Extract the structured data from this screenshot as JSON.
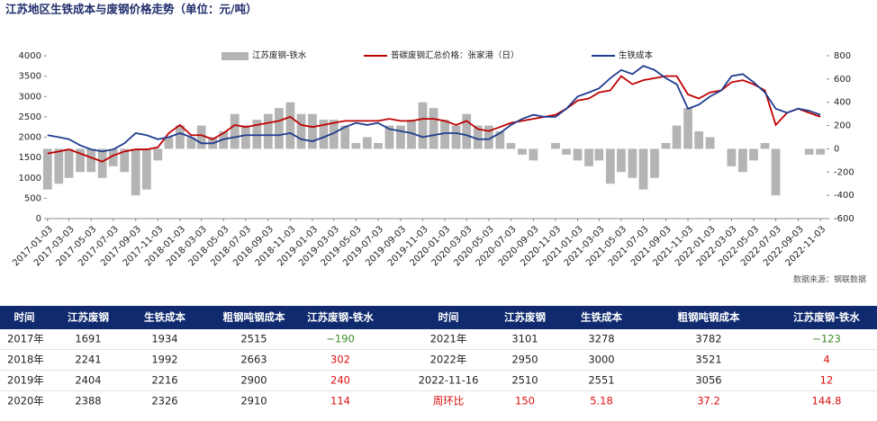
{
  "chart_data": {
    "type": "bar-line",
    "title": "江苏地区生铁成本与废钢价格走势（单位：元/吨）",
    "source": "数据来源：钢联数据",
    "x": [
      "2017-01-03",
      "2017-02-03",
      "2017-03-03",
      "2017-04-03",
      "2017-05-03",
      "2017-06-03",
      "2017-07-03",
      "2017-08-03",
      "2017-09-03",
      "2017-10-03",
      "2017-11-03",
      "2017-12-03",
      "2018-01-03",
      "2018-02-03",
      "2018-03-03",
      "2018-04-03",
      "2018-05-03",
      "2018-06-03",
      "2018-07-03",
      "2018-08-03",
      "2018-09-03",
      "2018-10-03",
      "2018-11-03",
      "2018-12-03",
      "2019-01-03",
      "2019-02-03",
      "2019-03-03",
      "2019-04-03",
      "2019-05-03",
      "2019-06-03",
      "2019-07-03",
      "2019-08-03",
      "2019-09-03",
      "2019-10-03",
      "2019-11-03",
      "2019-12-03",
      "2020-01-03",
      "2020-02-03",
      "2020-03-03",
      "2020-04-03",
      "2020-05-03",
      "2020-06-03",
      "2020-07-03",
      "2020-08-03",
      "2020-09-03",
      "2020-10-03",
      "2020-11-03",
      "2020-12-03",
      "2021-01-03",
      "2021-02-03",
      "2021-03-03",
      "2021-04-03",
      "2021-05-03",
      "2021-06-03",
      "2021-07-03",
      "2021-08-03",
      "2021-09-03",
      "2021-10-03",
      "2021-11-03",
      "2021-12-03",
      "2022-01-03",
      "2022-02-03",
      "2022-03-03",
      "2022-04-03",
      "2022-05-03",
      "2022-06-03",
      "2022-07-03",
      "2022-08-03",
      "2022-09-03",
      "2022-10-03",
      "2022-11-03"
    ],
    "xlim": [
      "2017-01-01",
      "2022-11-20"
    ],
    "xticks": [
      "2017-01-03",
      "2017-03-03",
      "2017-05-03",
      "2017-07-03",
      "2017-09-03",
      "2017-11-03",
      "2018-01-03",
      "2018-03-03",
      "2018-05-03",
      "2018-07-03",
      "2018-09-03",
      "2018-11-03",
      "2019-01-03",
      "2019-03-03",
      "2019-05-03",
      "2019-07-03",
      "2019-09-03",
      "2019-11-03",
      "2020-01-03",
      "2020-03-03",
      "2020-05-03",
      "2020-07-03",
      "2020-09-03",
      "2020-11-03",
      "2021-01-03",
      "2021-03-03",
      "2021-05-03",
      "2021-07-03",
      "2021-09-03",
      "2021-11-03",
      "2022-01-03",
      "2022-03-03",
      "2022-05-03",
      "2022-07-03",
      "2022-09-03",
      "2022-11-03"
    ],
    "ylim": [
      0,
      4000
    ],
    "yticks": [
      0,
      500,
      1000,
      1500,
      2000,
      2500,
      3000,
      3500,
      4000
    ],
    "y2lim": [
      -600,
      800
    ],
    "y2ticks": [
      -600,
      -400,
      -200,
      0,
      200,
      400,
      600,
      800
    ],
    "series": [
      {
        "name": "江苏废钢-铁水",
        "type": "bar",
        "axis": "y2",
        "color": "#b4b4b4",
        "values": [
          -350,
          -300,
          -250,
          -200,
          -200,
          -250,
          -150,
          -200,
          -400,
          -350,
          -100,
          100,
          200,
          100,
          200,
          100,
          150,
          300,
          200,
          250,
          300,
          350,
          400,
          300,
          300,
          250,
          250,
          200,
          50,
          100,
          50,
          200,
          200,
          250,
          400,
          350,
          250,
          200,
          300,
          200,
          200,
          150,
          50,
          -50,
          -100,
          0,
          50,
          -50,
          -100,
          -150,
          -100,
          -300,
          -200,
          -250,
          -350,
          -250,
          50,
          200,
          350,
          150,
          100,
          0,
          -150,
          -200,
          -100,
          50,
          -400,
          0,
          0,
          -50,
          -50
        ]
      },
      {
        "name": "普碳废钢汇总价格：张家港（日）",
        "type": "line",
        "color": "#c00000",
        "values": [
          1600,
          1650,
          1700,
          1600,
          1500,
          1400,
          1550,
          1650,
          1700,
          1700,
          1750,
          2100,
          2300,
          2050,
          2050,
          1950,
          2100,
          2300,
          2250,
          2300,
          2350,
          2400,
          2500,
          2300,
          2250,
          2300,
          2350,
          2400,
          2400,
          2400,
          2400,
          2450,
          2400,
          2400,
          2450,
          2450,
          2400,
          2300,
          2400,
          2200,
          2150,
          2250,
          2350,
          2400,
          2450,
          2500,
          2550,
          2700,
          2900,
          2950,
          3100,
          3150,
          3500,
          3300,
          3400,
          3450,
          3500,
          3500,
          3050,
          2950,
          3100,
          3150,
          3350,
          3400,
          3300,
          3150,
          2300,
          2600,
          2700,
          2600,
          2500
        ]
      },
      {
        "name": "生铁成本",
        "type": "line",
        "color": "#1f3c8f",
        "values": [
          2050,
          2000,
          1950,
          1800,
          1700,
          1650,
          1700,
          1850,
          2100,
          2050,
          1950,
          2000,
          2100,
          2000,
          1850,
          1850,
          1950,
          2000,
          2050,
          2050,
          2050,
          2050,
          2100,
          1950,
          1900,
          2000,
          2100,
          2250,
          2350,
          2300,
          2350,
          2200,
          2150,
          2100,
          2000,
          2050,
          2100,
          2100,
          2050,
          1950,
          1950,
          2100,
          2300,
          2450,
          2550,
          2500,
          2500,
          2700,
          3000,
          3100,
          3200,
          3450,
          3650,
          3550,
          3750,
          3650,
          3450,
          3300,
          2700,
          2800,
          3000,
          3150,
          3500,
          3550,
          3350,
          3100,
          2700,
          2600,
          2700,
          2650,
          2550
        ]
      }
    ]
  },
  "table": {
    "header": [
      "时间",
      "江苏废钢",
      "生铁成本",
      "粗钢吨钢成本",
      "江苏废钢-铁水",
      "时间",
      "江苏废钢",
      "生铁成本",
      "粗钢吨钢成本",
      "江苏废钢-铁水"
    ],
    "rows": [
      [
        "2017年",
        "1691",
        "1934",
        "2515",
        "−190",
        "2021年",
        "3101",
        "3278",
        "3782",
        "−123"
      ],
      [
        "2018年",
        "2241",
        "1992",
        "2663",
        "302",
        "2022年",
        "2950",
        "3000",
        "3521",
        "4"
      ],
      [
        "2019年",
        "2404",
        "2216",
        "2900",
        "240",
        "2022-11-16",
        "2510",
        "2551",
        "3056",
        "12"
      ],
      [
        "2020年",
        "2388",
        "2326",
        "2910",
        "114",
        "周环比",
        "150",
        "5.18",
        "37.2",
        "144.8"
      ]
    ]
  }
}
